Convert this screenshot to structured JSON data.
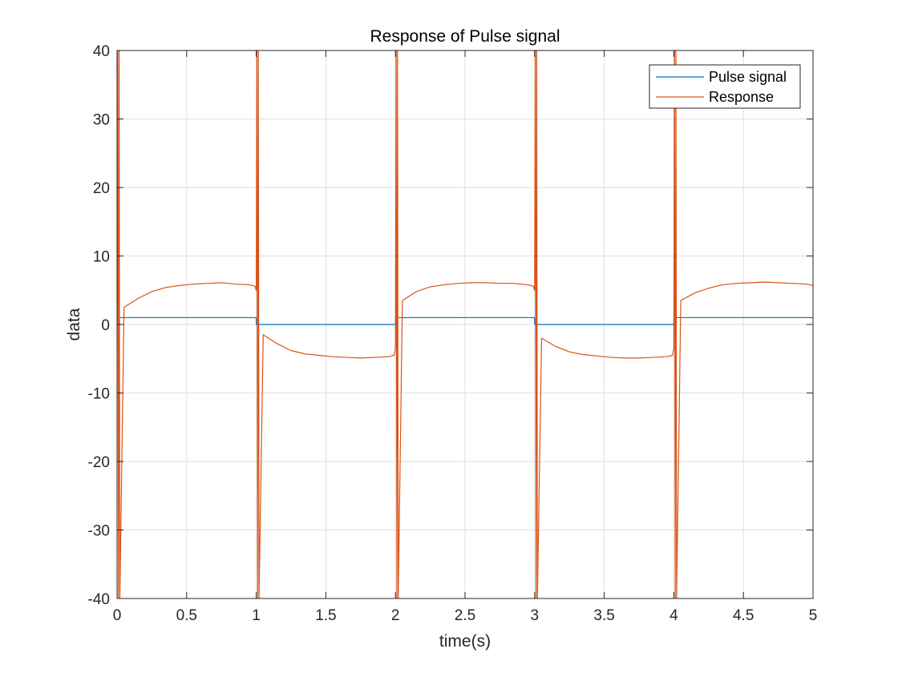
{
  "chart_data": {
    "type": "line",
    "title": "Response of Pulse signal",
    "xlabel": "time(s)",
    "ylabel": "data",
    "xlim": [
      0,
      5
    ],
    "ylim": [
      -40,
      40
    ],
    "xticks": [
      0,
      0.5,
      1,
      1.5,
      2,
      2.5,
      3,
      3.5,
      4,
      4.5,
      5
    ],
    "xtick_labels": [
      "0",
      "0.5",
      "1",
      "1.5",
      "2",
      "2.5",
      "3",
      "3.5",
      "4",
      "4.5",
      "5"
    ],
    "yticks": [
      -40,
      -30,
      -20,
      -10,
      0,
      10,
      20,
      30,
      40
    ],
    "ytick_labels": [
      "-40",
      "-30",
      "-20",
      "-10",
      "0",
      "10",
      "20",
      "30",
      "40"
    ],
    "grid": true,
    "legend_location": "top-right",
    "series": [
      {
        "name": "Pulse signal",
        "color": "#0072BD",
        "x": [
          0,
          0.999,
          1.001,
          1.999,
          2.001,
          2.999,
          3.001,
          3.999,
          4.001,
          5
        ],
        "y": [
          1,
          1,
          0,
          0,
          1,
          1,
          0,
          0,
          1,
          1
        ]
      },
      {
        "name": "Response",
        "color": "#D95319",
        "x": [
          0,
          0.005,
          0.01,
          0.015,
          0.02,
          0.05,
          0.15,
          0.25,
          0.35,
          0.45,
          0.55,
          0.65,
          0.75,
          0.85,
          0.95,
          0.99,
          1.0,
          1.005,
          1.01,
          1.015,
          1.02,
          1.05,
          1.15,
          1.25,
          1.35,
          1.45,
          1.55,
          1.65,
          1.75,
          1.85,
          1.95,
          1.99,
          2.0,
          2.005,
          2.01,
          2.015,
          2.02,
          2.05,
          2.15,
          2.25,
          2.35,
          2.45,
          2.55,
          2.65,
          2.75,
          2.85,
          2.95,
          2.99,
          3.0,
          3.005,
          3.01,
          3.015,
          3.02,
          3.05,
          3.15,
          3.25,
          3.35,
          3.45,
          3.55,
          3.65,
          3.75,
          3.85,
          3.95,
          3.99,
          4.0,
          4.005,
          4.01,
          4.015,
          4.02,
          4.05,
          4.15,
          4.25,
          4.35,
          4.45,
          4.55,
          4.65,
          4.75,
          4.85,
          4.95,
          5.0
        ],
        "y": [
          0,
          40,
          -40,
          40,
          -40,
          2.5,
          3.8,
          4.8,
          5.4,
          5.7,
          5.9,
          6.0,
          6.1,
          5.9,
          5.8,
          5.6,
          5.0,
          40,
          -40,
          40,
          -40,
          -1.5,
          -2.8,
          -3.8,
          -4.3,
          -4.5,
          -4.7,
          -4.8,
          -4.9,
          -4.8,
          -4.7,
          -4.5,
          -3.5,
          40,
          -40,
          40,
          -40,
          3.5,
          4.8,
          5.5,
          5.8,
          6.0,
          6.1,
          6.1,
          6.0,
          6.0,
          5.8,
          5.6,
          5.0,
          40,
          -40,
          40,
          -40,
          -2.0,
          -3.2,
          -4.0,
          -4.4,
          -4.6,
          -4.8,
          -4.9,
          -4.9,
          -4.8,
          -4.7,
          -4.5,
          -3.5,
          40,
          -40,
          40,
          -40,
          3.5,
          4.6,
          5.3,
          5.8,
          6.0,
          6.1,
          6.2,
          6.1,
          6.0,
          5.9,
          5.7
        ]
      }
    ]
  }
}
